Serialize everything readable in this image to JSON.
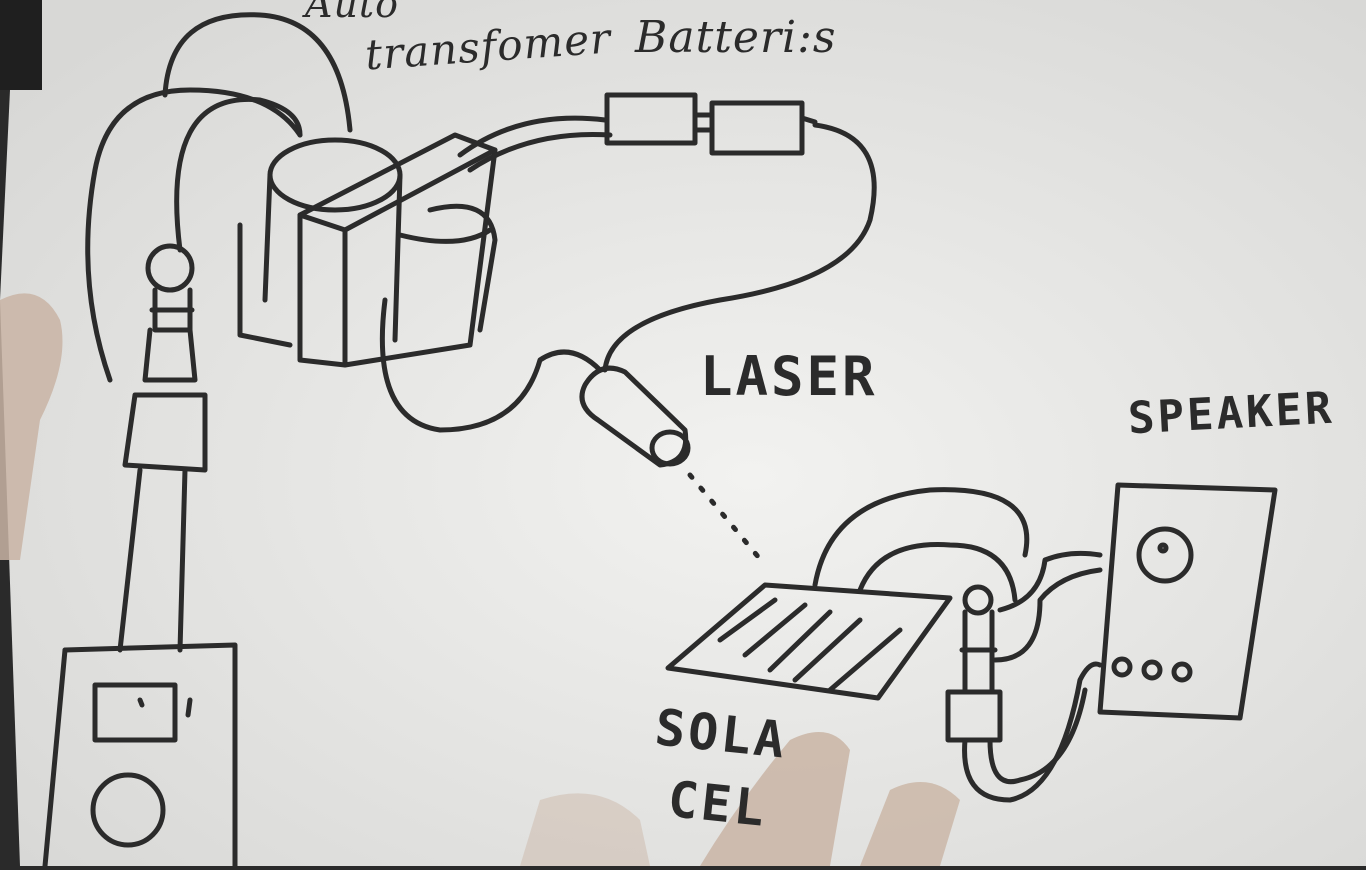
{
  "diagram": {
    "labels": {
      "auto_transformer_line1": "Auto",
      "auto_transformer_line2": "transfomer",
      "batteries": "Batteri:s",
      "laser": "LASER",
      "speaker": "SPEAKER",
      "solar_line1": "SOLA",
      "solar_line2": "CEL"
    },
    "colors": {
      "paper": "#ececea",
      "ink": "#2b2b2b",
      "background": "#2a2a2a",
      "skin": "#c9b4a4"
    }
  }
}
